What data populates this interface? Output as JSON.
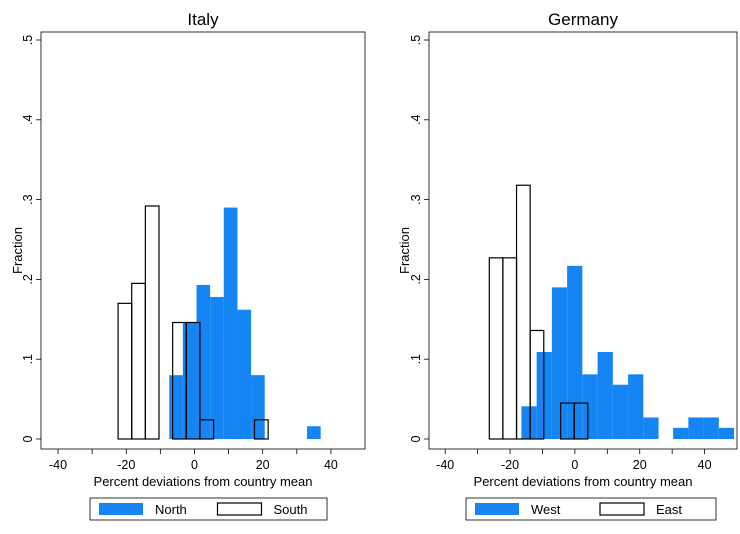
{
  "colors": {
    "filled": "#1485f2",
    "outline": "#000000",
    "background": "#ffffff"
  },
  "chart_data": [
    {
      "type": "bar",
      "title": "Italy",
      "xlabel": "Percent deviations from country mean",
      "ylabel": "Fraction",
      "xlim": [
        -45,
        50
      ],
      "ylim": [
        0,
        0.5
      ],
      "xticks": [
        "-40",
        "-20",
        "0",
        "20",
        "40"
      ],
      "yticks": [
        "0",
        ".1",
        ".2",
        ".3",
        ".4",
        ".5"
      ],
      "grid": false,
      "legend_position": "bottom",
      "series": [
        {
          "name": "North",
          "style": "filled",
          "bins": [
            {
              "x0": -7.4,
              "x1": -3.4,
              "y": 0.08
            },
            {
              "x0": -3.4,
              "x1": 0.6,
              "y": 0.146
            },
            {
              "x0": 0.6,
              "x1": 4.6,
              "y": 0.193
            },
            {
              "x0": 4.6,
              "x1": 8.6,
              "y": 0.178
            },
            {
              "x0": 8.6,
              "x1": 12.6,
              "y": 0.29
            },
            {
              "x0": 12.6,
              "x1": 16.6,
              "y": 0.162
            },
            {
              "x0": 16.6,
              "x1": 20.6,
              "y": 0.08
            },
            {
              "x0": 33,
              "x1": 37,
              "y": 0.016
            }
          ]
        },
        {
          "name": "South",
          "style": "outline",
          "bins": [
            {
              "x0": -22.4,
              "x1": -18.4,
              "y": 0.17
            },
            {
              "x0": -18.4,
              "x1": -14.4,
              "y": 0.195
            },
            {
              "x0": -14.4,
              "x1": -10.4,
              "y": 0.292
            },
            {
              "x0": -6.4,
              "x1": -2.4,
              "y": 0.146
            },
            {
              "x0": -2.4,
              "x1": 1.6,
              "y": 0.146
            },
            {
              "x0": 1.6,
              "x1": 5.6,
              "y": 0.024
            },
            {
              "x0": 17.6,
              "x1": 21.6,
              "y": 0.024
            }
          ]
        }
      ]
    },
    {
      "type": "bar",
      "title": "Germany",
      "xlabel": "Percent deviations from country mean",
      "ylabel": "Fraction",
      "xlim": [
        -45,
        50
      ],
      "ylim": [
        0,
        0.5
      ],
      "xticks": [
        "-40",
        "-20",
        "0",
        "20",
        "40"
      ],
      "yticks": [
        "0",
        ".1",
        ".2",
        ".3",
        ".4",
        ".5"
      ],
      "grid": false,
      "legend_position": "bottom",
      "series": [
        {
          "name": "West",
          "style": "filled",
          "bins": [
            {
              "x0": -16.5,
              "x1": -11.8,
              "y": 0.041
            },
            {
              "x0": -11.8,
              "x1": -7.1,
              "y": 0.109
            },
            {
              "x0": -7.1,
              "x1": -2.4,
              "y": 0.19
            },
            {
              "x0": -2.4,
              "x1": 2.3,
              "y": 0.217
            },
            {
              "x0": 2.3,
              "x1": 7.0,
              "y": 0.081
            },
            {
              "x0": 7.0,
              "x1": 11.7,
              "y": 0.109
            },
            {
              "x0": 11.7,
              "x1": 16.4,
              "y": 0.068
            },
            {
              "x0": 16.4,
              "x1": 21.1,
              "y": 0.081
            },
            {
              "x0": 21.1,
              "x1": 25.8,
              "y": 0.027
            },
            {
              "x0": 30.3,
              "x1": 35.0,
              "y": 0.014
            },
            {
              "x0": 35.0,
              "x1": 39.7,
              "y": 0.027
            },
            {
              "x0": 39.7,
              "x1": 44.4,
              "y": 0.027
            },
            {
              "x0": 44.4,
              "x1": 49.1,
              "y": 0.014
            }
          ]
        },
        {
          "name": "East",
          "style": "outline",
          "bins": [
            {
              "x0": -26.4,
              "x1": -22.2,
              "y": 0.227
            },
            {
              "x0": -22.2,
              "x1": -18.0,
              "y": 0.227
            },
            {
              "x0": -18.0,
              "x1": -13.8,
              "y": 0.318
            },
            {
              "x0": -13.8,
              "x1": -9.6,
              "y": 0.136
            },
            {
              "x0": -4.4,
              "x1": -0.2,
              "y": 0.045
            },
            {
              "x0": -0.2,
              "x1": 4.0,
              "y": 0.045
            }
          ]
        }
      ]
    }
  ]
}
